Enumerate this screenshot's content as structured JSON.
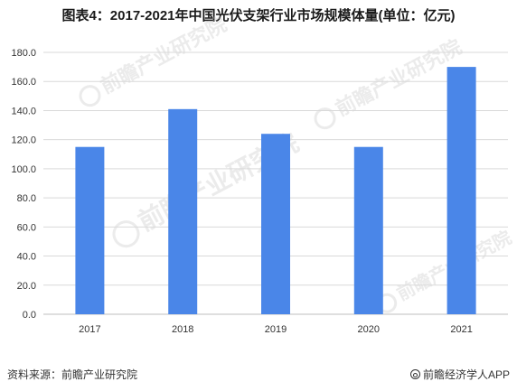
{
  "title": "图表4：2017-2021年中国光伏支架行业市场规模体量(单位：亿元)",
  "watermark_text": "前瞻产业研究院",
  "footer": {
    "source": "资料来源：前瞻产业研究院",
    "brand": "前瞻经济学人APP",
    "brand_icon": "at-sign-icon"
  },
  "colors": {
    "bar": "#4a86e8",
    "grid": "#d9d9d9",
    "axis": "#bfbfbf",
    "tick_text": "#333333"
  },
  "chart_data": {
    "type": "bar",
    "categories": [
      "2017",
      "2018",
      "2019",
      "2020",
      "2021"
    ],
    "values": [
      115,
      141,
      124,
      115,
      170
    ],
    "ylim": [
      0,
      180
    ],
    "yticks": [
      "0.0",
      "20.0",
      "40.0",
      "60.0",
      "80.0",
      "100.0",
      "120.0",
      "140.0",
      "160.0",
      "180.0"
    ],
    "xlabel": "",
    "ylabel": "",
    "grid": true,
    "legend": "none"
  }
}
